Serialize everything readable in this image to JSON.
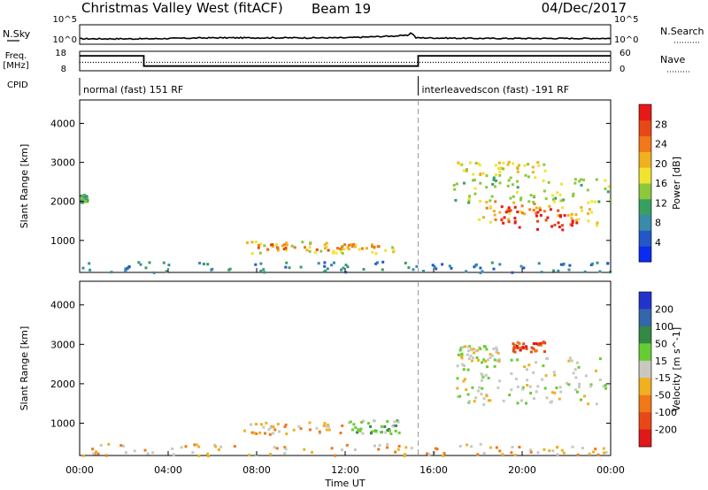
{
  "header": {
    "title": "Christmas Valley West (fitACF)",
    "beam": "Beam 19",
    "date": "04/Dec/2017"
  },
  "chart_data": [
    {
      "type": "line",
      "name": "sky-noise-panel",
      "ylabel_left": "N.Sky",
      "ylabel_right": "N.Search",
      "y_ticks_left": [
        "10^5",
        "10^0"
      ],
      "y_ticks_right": [
        "10^5",
        "10^0"
      ],
      "x": [
        0,
        3,
        6,
        9,
        12,
        14.8,
        15,
        15.2,
        18,
        21,
        24
      ],
      "values": [
        0.28,
        0.28,
        0.33,
        0.33,
        0.33,
        0.45,
        0.6,
        0.33,
        0.3,
        0.3,
        0.3
      ]
    },
    {
      "type": "line",
      "name": "frequency-panel",
      "ylabel_left": "Freq. [MHz]",
      "ylabel_right": "Nave",
      "y_ticks_left": [
        "18",
        "8"
      ],
      "y_ticks_right": [
        "60",
        "0"
      ],
      "series": [
        {
          "name": "Freq",
          "x": [
            0,
            2.9,
            2.9,
            15.3,
            15.3,
            24
          ],
          "values": [
            15.7,
            15.7,
            10.4,
            10.4,
            15.7,
            15.7
          ]
        },
        {
          "name": "Nave",
          "x": [
            0,
            24
          ],
          "values": [
            26,
            26
          ]
        }
      ]
    },
    {
      "type": "table",
      "name": "cpid-panel",
      "label": "CPID",
      "segments": [
        {
          "start": 0,
          "end": 15.3,
          "text": "normal (fast) 151 RF"
        },
        {
          "start": 15.3,
          "end": 24,
          "text": "interleavedscon (fast) -191 RF"
        }
      ]
    },
    {
      "type": "heatmap",
      "name": "power-panel",
      "ylabel": "Slant Range [km]",
      "y_ticks": [
        1000,
        2000,
        3000,
        4000
      ],
      "ylim": [
        180,
        4600
      ],
      "xlim": [
        0,
        24
      ],
      "colorbar": {
        "label": "Power [dB]",
        "ticks": [
          "4",
          "8",
          "12",
          "16",
          "20",
          "24",
          "28"
        ],
        "colors": [
          "#0a2bf0",
          "#2357c8",
          "#3a8aaa",
          "#37a060",
          "#8cc83c",
          "#f0e430",
          "#f0b020",
          "#f07818",
          "#e84818",
          "#e81818"
        ]
      },
      "regions": [
        {
          "x0": 0,
          "x1": 0.3,
          "y0": 2000,
          "y1": 2200,
          "level": 3
        },
        {
          "x0": 7.2,
          "x1": 14.2,
          "y0": 700,
          "y1": 1000,
          "level": 5
        },
        {
          "x0": 8,
          "x1": 13.5,
          "y0": 780,
          "y1": 930,
          "level": 7
        },
        {
          "x0": 0,
          "x1": 24,
          "y0": 200,
          "y1": 480,
          "level": 2
        },
        {
          "x0": 18,
          "x1": 23.5,
          "y0": 1400,
          "y1": 2100,
          "level": 6
        },
        {
          "x0": 19,
          "x1": 22.5,
          "y0": 1300,
          "y1": 1900,
          "level": 9
        },
        {
          "x0": 16.8,
          "x1": 24,
          "y0": 2000,
          "y1": 2700,
          "level": 4
        },
        {
          "x0": 17,
          "x1": 21,
          "y0": 2700,
          "y1": 3100,
          "level": 5
        }
      ]
    },
    {
      "type": "heatmap",
      "name": "velocity-panel",
      "ylabel": "Slant Range [km]",
      "y_ticks": [
        1000,
        2000,
        3000,
        4000
      ],
      "ylim": [
        180,
        4600
      ],
      "xlim": [
        0,
        24
      ],
      "x_ticks": [
        "00:00",
        "04:00",
        "08:00",
        "12:00",
        "16:00",
        "20:00",
        "00:00"
      ],
      "xlabel": "Time UT",
      "colorbar": {
        "label": "Velocity [m s^-1]",
        "ticks": [
          "200",
          "100",
          "50",
          "15",
          "-15",
          "-50",
          "-100",
          "-200"
        ],
        "colors": [
          "#2233cc",
          "#3366aa",
          "#338844",
          "#66cc33",
          "#c8c8c0",
          "#f0b020",
          "#f07818",
          "#e84818",
          "#e01818"
        ]
      },
      "regions": [
        {
          "x0": 7.2,
          "x1": 12,
          "y0": 720,
          "y1": 1050,
          "level": 5
        },
        {
          "x0": 12,
          "x1": 14.5,
          "y0": 750,
          "y1": 1100,
          "level": 3
        },
        {
          "x0": 0,
          "x1": 24,
          "y0": 200,
          "y1": 500,
          "level": 5
        },
        {
          "x0": 17,
          "x1": 23.8,
          "y0": 1500,
          "y1": 2700,
          "level": 4
        },
        {
          "x0": 17,
          "x1": 19,
          "y0": 2600,
          "y1": 3000,
          "level": 4
        },
        {
          "x0": 19.5,
          "x1": 21,
          "y0": 2800,
          "y1": 3100,
          "level": 7
        }
      ]
    }
  ]
}
